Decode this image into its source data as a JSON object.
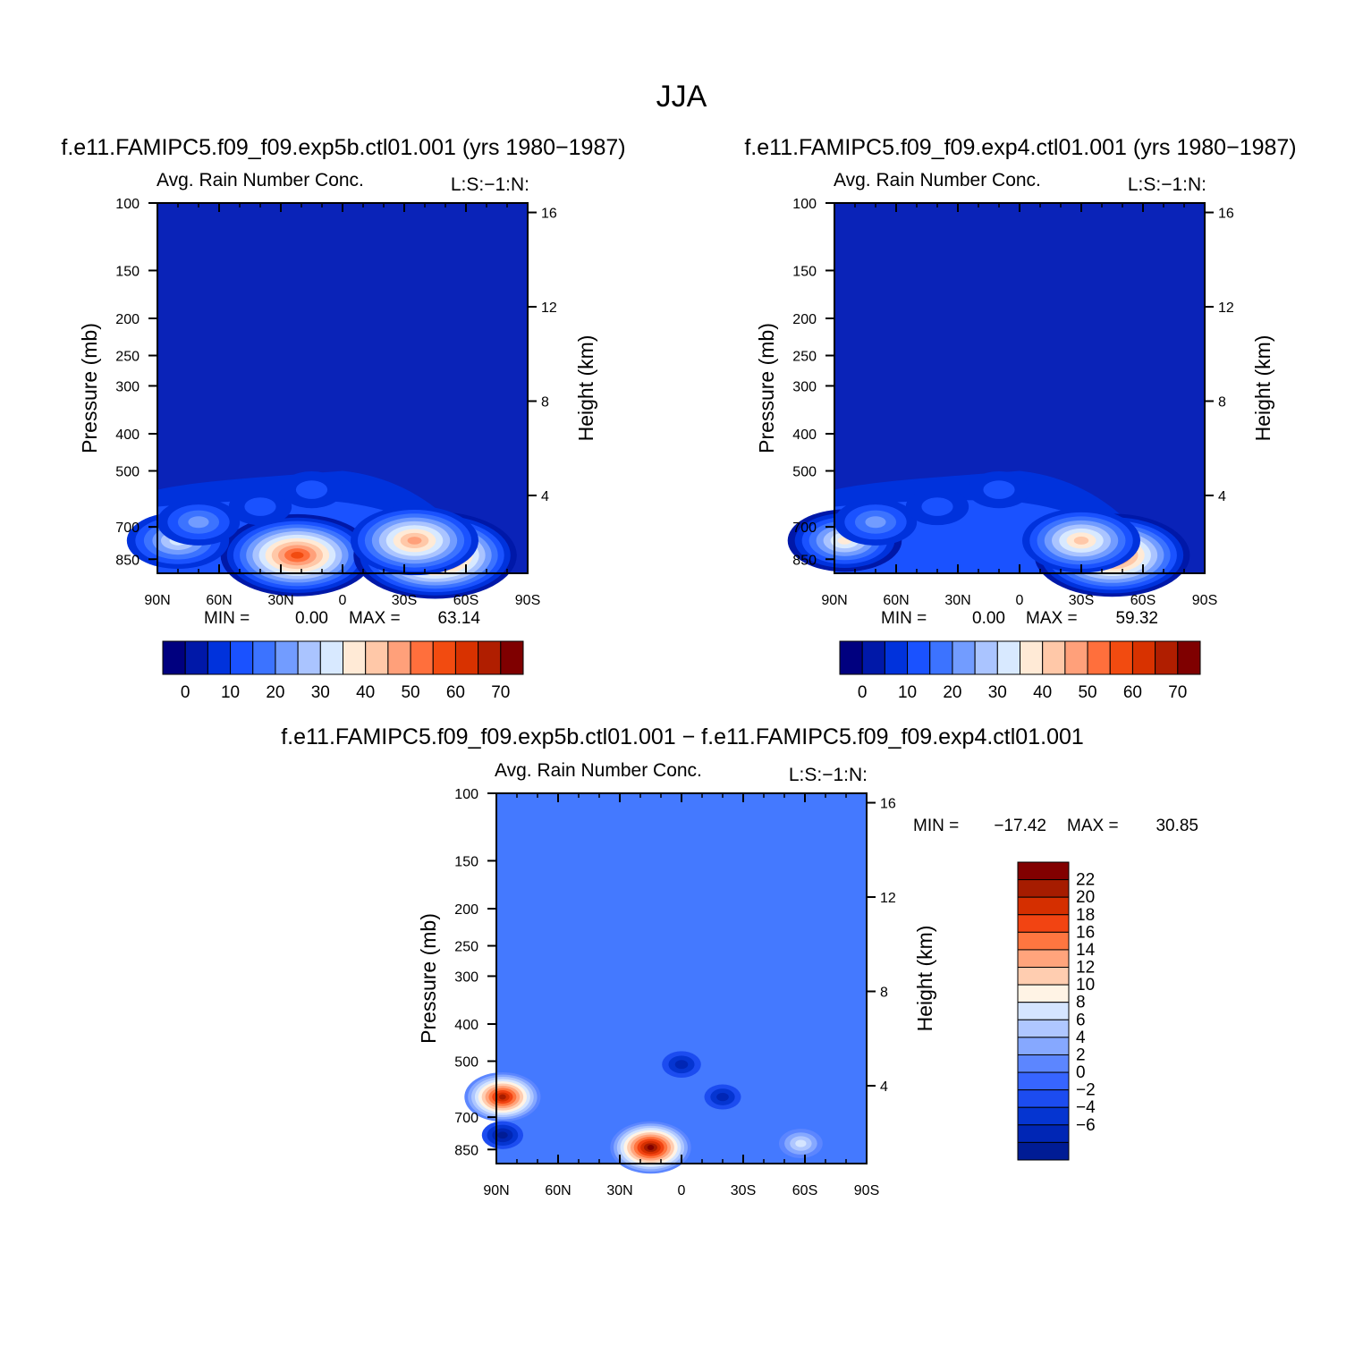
{
  "figure": {
    "title": "JJA"
  },
  "colors": {
    "ctl_scale": [
      "#00007f",
      "#0018a8",
      "#0032dc",
      "#1a52ff",
      "#3c73ff",
      "#729cff",
      "#aac4ff",
      "#d8e9ff",
      "#ffead6",
      "#ffc8a8",
      "#ffa07a",
      "#ff6f3c",
      "#f24b10",
      "#d83200",
      "#b01e00",
      "#7f0000"
    ],
    "diff_scale": [
      "#001c95",
      "#0026b5",
      "#0535d1",
      "#1c4cf0",
      "#3765ff",
      "#5c86ff",
      "#86a8ff",
      "#afc7ff",
      "#d5e5ff",
      "#fff3e5",
      "#ffcdb0",
      "#ffa47c",
      "#ff7640",
      "#f24412",
      "#d52f00",
      "#a61c00",
      "#820000"
    ],
    "diff_background": "#4479ff"
  },
  "chart_data": [
    {
      "type": "contour",
      "run": "f.e11.FAMIPC5.f09_f09.exp5b.ctl01.001 (yrs 1980−1987)",
      "variable": "Avg. Rain Number Conc.",
      "code": "L:S:−1:N:",
      "x_label": "",
      "x_ticks": [
        "90N",
        "60N",
        "30N",
        "0",
        "30S",
        "60S",
        "90S"
      ],
      "y_label": "Pressure (mb)",
      "y_ticks": [
        "100",
        "150",
        "200",
        "250",
        "300",
        "400",
        "500",
        "700",
        "850"
      ],
      "y_values": [
        100,
        150,
        200,
        250,
        300,
        400,
        500,
        700,
        850
      ],
      "y_right_label": "Height (km)",
      "y_right_ticks": [
        "16",
        "12",
        "8",
        "4"
      ],
      "y_right_values": [
        16,
        12,
        8,
        4
      ],
      "min_label": "MIN =",
      "min_value": "0.00",
      "max_label": "MAX =",
      "max_value": "63.14",
      "colorbar_labels": [
        "0",
        "10",
        "20",
        "30",
        "40",
        "50",
        "60",
        "70"
      ],
      "colorbar_levels": 16,
      "blobs": [
        {
          "lat": 22,
          "p": 830,
          "value": 58
        },
        {
          "lat": -45,
          "p": 830,
          "value": 63
        },
        {
          "lat": -35,
          "p": 760,
          "value": 45
        },
        {
          "lat": 80,
          "p": 760,
          "value": 32
        },
        {
          "lat": 70,
          "p": 680,
          "value": 22
        },
        {
          "lat": 40,
          "p": 620,
          "value": 12
        },
        {
          "lat": 15,
          "p": 560,
          "value": 12
        }
      ]
    },
    {
      "type": "contour",
      "run": "f.e11.FAMIPC5.f09_f09.exp4.ctl01.001 (yrs 1980−1987)",
      "variable": "Avg. Rain Number Conc.",
      "code": "L:S:−1:N:",
      "x_label": "",
      "x_ticks": [
        "90N",
        "60N",
        "30N",
        "0",
        "30S",
        "60S",
        "90S"
      ],
      "y_label": "Pressure (mb)",
      "y_ticks": [
        "100",
        "150",
        "200",
        "250",
        "300",
        "400",
        "500",
        "700",
        "850"
      ],
      "y_values": [
        100,
        150,
        200,
        250,
        300,
        400,
        500,
        700,
        850
      ],
      "y_right_label": "Height (km)",
      "y_right_ticks": [
        "16",
        "12",
        "8",
        "4"
      ],
      "y_right_values": [
        16,
        12,
        8,
        4
      ],
      "min_label": "MIN =",
      "min_value": "0.00",
      "max_label": "MAX =",
      "max_value": "59.32",
      "colorbar_labels": [
        "0",
        "10",
        "20",
        "30",
        "40",
        "50",
        "60",
        "70"
      ],
      "colorbar_levels": 16,
      "blobs": [
        {
          "lat": -45,
          "p": 830,
          "value": 59
        },
        {
          "lat": -30,
          "p": 760,
          "value": 40
        },
        {
          "lat": 85,
          "p": 760,
          "value": 38
        },
        {
          "lat": 70,
          "p": 680,
          "value": 22
        },
        {
          "lat": 40,
          "p": 620,
          "value": 12
        },
        {
          "lat": 10,
          "p": 560,
          "value": 12
        }
      ]
    },
    {
      "type": "contour",
      "run": "f.e11.FAMIPC5.f09_f09.exp5b.ctl01.001 − f.e11.FAMIPC5.f09_f09.exp4.ctl01.001",
      "variable": "Avg. Rain Number Conc.",
      "code": "L:S:−1:N:",
      "x_label": "",
      "x_ticks": [
        "90N",
        "60N",
        "30N",
        "0",
        "30S",
        "60S",
        "90S"
      ],
      "y_label": "Pressure (mb)",
      "y_ticks": [
        "100",
        "150",
        "200",
        "250",
        "300",
        "400",
        "500",
        "700",
        "850"
      ],
      "y_values": [
        100,
        150,
        200,
        250,
        300,
        400,
        500,
        700,
        850
      ],
      "y_right_label": "Height (km)",
      "y_right_ticks": [
        "16",
        "12",
        "8",
        "4"
      ],
      "y_right_values": [
        16,
        12,
        8,
        4
      ],
      "min_label": "MIN =",
      "min_value": "−17.42",
      "max_label": "MAX =",
      "max_value": "30.85",
      "colorbar_labels": [
        "22",
        "20",
        "18",
        "16",
        "14",
        "12",
        "10",
        "8",
        "6",
        "4",
        "2",
        "0",
        "−2",
        "−4",
        "−6"
      ],
      "colorbar_levels": 17,
      "blobs": [
        {
          "lat": 15,
          "p": 840,
          "value": 24
        },
        {
          "lat": 87,
          "p": 620,
          "value": 22
        },
        {
          "lat": -58,
          "p": 820,
          "value": 8
        },
        {
          "lat": 87,
          "p": 780,
          "value": -7
        },
        {
          "lat": 0,
          "p": 510,
          "value": -6
        },
        {
          "lat": -20,
          "p": 620,
          "value": -5
        }
      ]
    }
  ]
}
